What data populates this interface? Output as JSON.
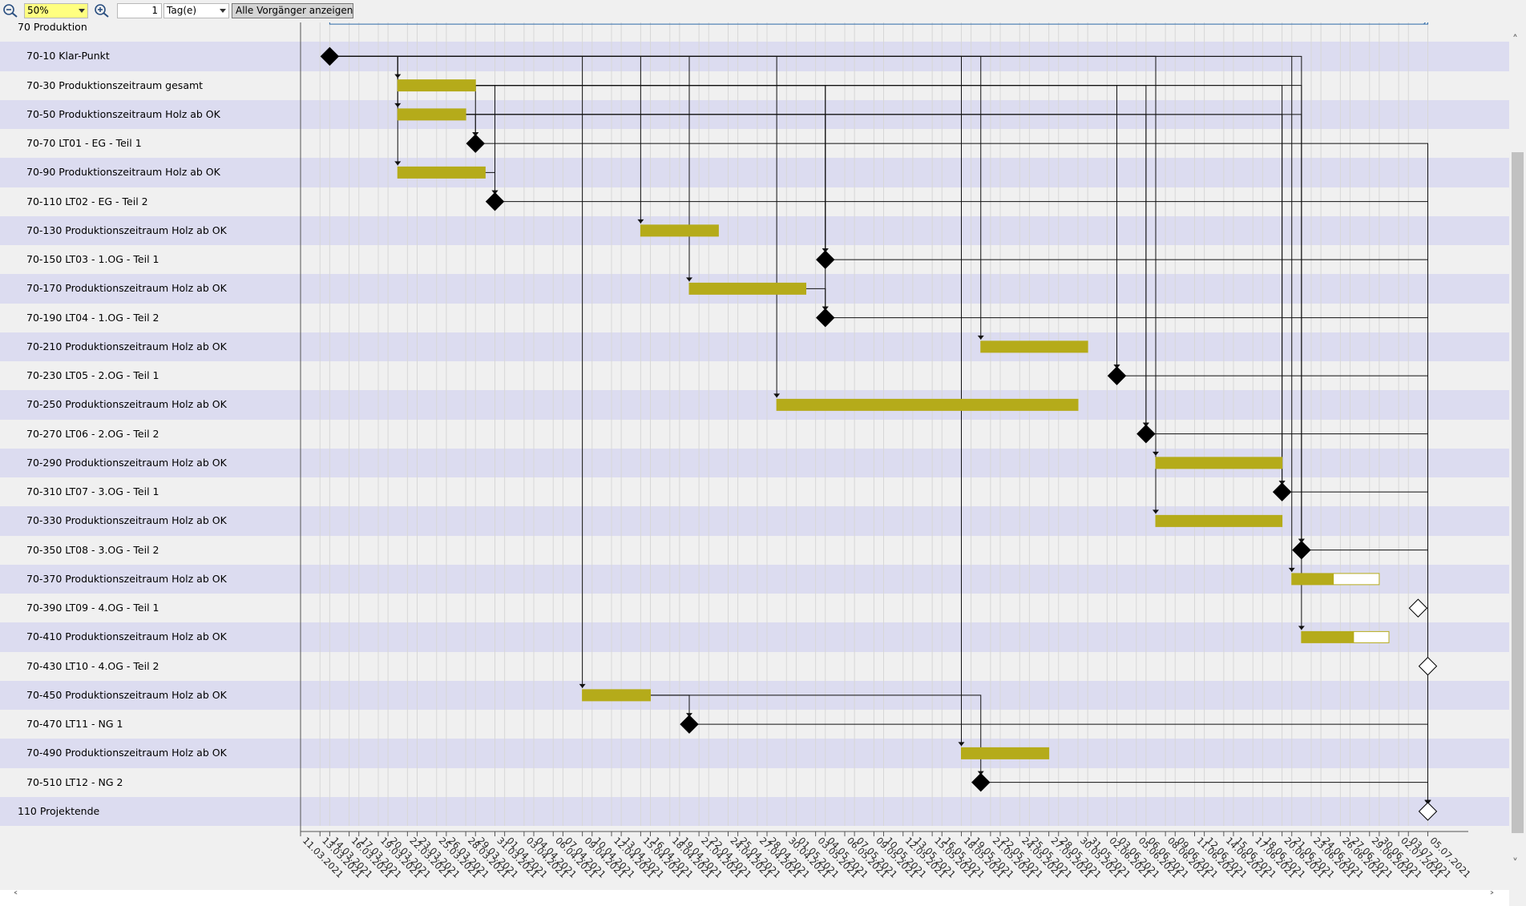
{
  "toolbar": {
    "zoom_value": "50%",
    "step_value": "1",
    "unit_value": "Tag(e)",
    "predecessor_button": "Alle Vorgänger anzeigen"
  },
  "rows": [
    {
      "label": "70 Produktion",
      "indent": 1
    },
    {
      "label": "70-10 Klar-Punkt",
      "indent": 2
    },
    {
      "label": "70-30 Produktionszeitraum gesamt",
      "indent": 2
    },
    {
      "label": "70-50 Produktionszeitraum Holz ab OK",
      "indent": 2
    },
    {
      "label": "70-70 LT01 - EG - Teil 1",
      "indent": 2
    },
    {
      "label": "70-90 Produktionszeitraum Holz ab OK",
      "indent": 2
    },
    {
      "label": "70-110 LT02 - EG - Teil 2",
      "indent": 2
    },
    {
      "label": "70-130 Produktionszeitraum Holz ab OK",
      "indent": 2
    },
    {
      "label": "70-150 LT03 - 1.OG - Teil 1",
      "indent": 2
    },
    {
      "label": "70-170 Produktionszeitraum Holz ab OK",
      "indent": 2
    },
    {
      "label": "70-190 LT04 - 1.OG - Teil 2",
      "indent": 2
    },
    {
      "label": "70-210 Produktionszeitraum Holz ab OK",
      "indent": 2
    },
    {
      "label": "70-230 LT05 - 2.OG - Teil 1",
      "indent": 2
    },
    {
      "label": "70-250 Produktionszeitraum Holz ab OK",
      "indent": 2
    },
    {
      "label": "70-270 LT06 - 2.OG - Teil 2",
      "indent": 2
    },
    {
      "label": "70-290 Produktionszeitraum Holz ab OK",
      "indent": 2
    },
    {
      "label": "70-310 LT07 - 3.OG - Teil 1",
      "indent": 2
    },
    {
      "label": "70-330 Produktionszeitraum Holz ab OK",
      "indent": 2
    },
    {
      "label": "70-350 LT08 - 3.OG - Teil 2",
      "indent": 2
    },
    {
      "label": "70-370 Produktionszeitraum Holz ab OK",
      "indent": 2
    },
    {
      "label": "70-390 LT09 - 4.OG - Teil 1",
      "indent": 2
    },
    {
      "label": "70-410 Produktionszeitraum Holz ab OK",
      "indent": 2
    },
    {
      "label": "70-430 LT10 - 4.OG - Teil 2",
      "indent": 2
    },
    {
      "label": "70-450 Produktionszeitraum Holz ab OK",
      "indent": 2
    },
    {
      "label": "70-470 LT11 - NG 1",
      "indent": 2
    },
    {
      "label": "70-490 Produktionszeitraum Holz ab OK",
      "indent": 2
    },
    {
      "label": "70-510 LT12 - NG 2",
      "indent": 2
    },
    {
      "label": "110 Projektende",
      "indent": 1
    }
  ],
  "dates": [
    "11.03.2021",
    "13.03.2021",
    "14.03.2021",
    "16.03.2021",
    "17.03.2021",
    "19.03.2021",
    "20.03.2021",
    "22.03.2021",
    "23.03.2021",
    "25.03.2021",
    "26.03.2021",
    "28.03.2021",
    "29.03.2021",
    "31.03.2021",
    "01.04.2021",
    "03.04.2021",
    "04.04.2021",
    "06.04.2021",
    "07.04.2021",
    "09.04.2021",
    "10.04.2021",
    "12.04.2021",
    "13.04.2021",
    "15.04.2021",
    "16.04.2021",
    "18.04.2021",
    "19.04.2021",
    "21.04.2021",
    "22.04.2021",
    "24.04.2021",
    "25.04.2021",
    "27.04.2021",
    "28.04.2021",
    "30.04.2021",
    "01.05.2021",
    "03.05.2021",
    "04.05.2021",
    "06.05.2021",
    "07.05.2021",
    "09.05.2021",
    "10.05.2021",
    "12.05.2021",
    "13.05.2021",
    "15.05.2021",
    "16.05.2021",
    "18.05.2021",
    "19.05.2021",
    "21.05.2021",
    "22.05.2021",
    "24.05.2021",
    "25.05.2021",
    "27.05.2021",
    "28.05.2021",
    "30.05.2021",
    "31.05.2021",
    "02.06.2021",
    "03.06.2021",
    "05.06.2021",
    "06.06.2021",
    "08.06.2021",
    "09.06.2021",
    "11.06.2021",
    "12.06.2021",
    "14.06.2021",
    "15.06.2021",
    "17.06.2021",
    "18.06.2021",
    "20.06.2021",
    "21.06.2021",
    "23.06.2021",
    "24.06.2021",
    "26.06.2021",
    "27.06.2021",
    "29.06.2021",
    "30.06.2021",
    "02.07.2021",
    "03.07.2021",
    "05.07.2021"
  ],
  "colors": {
    "bar": "#b5ab1a",
    "summary": "#2e6aa8",
    "milestone": "#000000",
    "row_alt": "#dcdcf0"
  },
  "icons": {
    "zoom_out": "zoom-out-icon",
    "zoom_in": "zoom-in-icon"
  },
  "tasks": [
    {
      "row": 0,
      "kind": "summary",
      "start": "14.03.2021",
      "end": "05.07.2021",
      "progress": 0.83
    },
    {
      "row": 1,
      "kind": "milestone",
      "date": "14.03.2021",
      "done": true
    },
    {
      "row": 2,
      "kind": "bar",
      "start": "21.03.2021",
      "end": "29.03.2021",
      "progress": 1
    },
    {
      "row": 3,
      "kind": "bar",
      "start": "21.03.2021",
      "end": "28.03.2021",
      "progress": 1
    },
    {
      "row": 4,
      "kind": "milestone",
      "date": "29.03.2021",
      "done": true
    },
    {
      "row": 5,
      "kind": "bar",
      "start": "21.03.2021",
      "end": "30.03.2021",
      "progress": 1
    },
    {
      "row": 6,
      "kind": "milestone",
      "date": "31.03.2021",
      "done": true
    },
    {
      "row": 7,
      "kind": "bar",
      "start": "15.04.2021",
      "end": "23.04.2021",
      "progress": 1
    },
    {
      "row": 8,
      "kind": "milestone",
      "date": "04.05.2021",
      "done": true
    },
    {
      "row": 9,
      "kind": "bar",
      "start": "20.04.2021",
      "end": "02.05.2021",
      "progress": 1
    },
    {
      "row": 10,
      "kind": "milestone",
      "date": "04.05.2021",
      "done": true
    },
    {
      "row": 11,
      "kind": "bar",
      "start": "20.05.2021",
      "end": "31.05.2021",
      "progress": 1
    },
    {
      "row": 12,
      "kind": "milestone",
      "date": "03.06.2021",
      "done": true
    },
    {
      "row": 13,
      "kind": "bar",
      "start": "29.04.2021",
      "end": "30.05.2021",
      "progress": 1
    },
    {
      "row": 14,
      "kind": "milestone",
      "date": "06.06.2021",
      "done": true
    },
    {
      "row": 15,
      "kind": "bar",
      "start": "07.06.2021",
      "end": "20.06.2021",
      "progress": 1
    },
    {
      "row": 16,
      "kind": "milestone",
      "date": "20.06.2021",
      "done": true
    },
    {
      "row": 17,
      "kind": "bar",
      "start": "07.06.2021",
      "end": "20.06.2021",
      "progress": 1
    },
    {
      "row": 18,
      "kind": "milestone",
      "date": "22.06.2021",
      "done": true
    },
    {
      "row": 19,
      "kind": "bar",
      "start": "21.06.2021",
      "end": "30.06.2021",
      "progress": 0.48
    },
    {
      "row": 20,
      "kind": "milestone",
      "date": "04.07.2021",
      "done": false
    },
    {
      "row": 21,
      "kind": "bar",
      "start": "22.06.2021",
      "end": "01.07.2021",
      "progress": 0.6
    },
    {
      "row": 22,
      "kind": "milestone",
      "date": "05.07.2021",
      "done": false
    },
    {
      "row": 23,
      "kind": "bar",
      "start": "09.04.2021",
      "end": "16.04.2021",
      "progress": 1
    },
    {
      "row": 24,
      "kind": "milestone",
      "date": "20.04.2021",
      "done": true
    },
    {
      "row": 25,
      "kind": "bar",
      "start": "18.05.2021",
      "end": "27.05.2021",
      "progress": 1
    },
    {
      "row": 26,
      "kind": "milestone",
      "date": "20.05.2021",
      "done": true
    },
    {
      "row": 27,
      "kind": "milestone",
      "date": "05.07.2021",
      "done": false
    }
  ],
  "links": [
    {
      "from": 1,
      "to": 2
    },
    {
      "from": 1,
      "to": 3
    },
    {
      "from": 1,
      "to": 5
    },
    {
      "from": 1,
      "to": 7
    },
    {
      "from": 1,
      "to": 9
    },
    {
      "from": 1,
      "to": 13
    },
    {
      "from": 1,
      "to": 23
    },
    {
      "from": 1,
      "to": 25
    },
    {
      "from": 1,
      "to": 15
    },
    {
      "from": 1,
      "to": 17
    },
    {
      "from": 1,
      "to": 19
    },
    {
      "from": 1,
      "to": 21
    },
    {
      "from": 1,
      "to": 11
    },
    {
      "from": 2,
      "to": 4
    },
    {
      "from": 3,
      "to": 4
    },
    {
      "from": 2,
      "to": 6
    },
    {
      "from": 5,
      "to": 6
    },
    {
      "from": 2,
      "to": 8
    },
    {
      "from": 3,
      "to": 8
    },
    {
      "from": 9,
      "to": 10
    },
    {
      "from": 2,
      "to": 10
    },
    {
      "from": 2,
      "to": 12
    },
    {
      "from": 3,
      "to": 12
    },
    {
      "from": 2,
      "to": 14
    },
    {
      "from": 3,
      "to": 14
    },
    {
      "from": 2,
      "to": 16
    },
    {
      "from": 3,
      "to": 16
    },
    {
      "from": 2,
      "to": 18
    },
    {
      "from": 3,
      "to": 18
    },
    {
      "from": 23,
      "to": 24
    },
    {
      "from": 23,
      "to": 26
    },
    {
      "from": 4,
      "to": 27
    },
    {
      "from": 6,
      "to": 27
    },
    {
      "from": 8,
      "to": 27
    },
    {
      "from": 10,
      "to": 27
    },
    {
      "from": 12,
      "to": 27
    },
    {
      "from": 14,
      "to": 27
    },
    {
      "from": 16,
      "to": 27
    },
    {
      "from": 18,
      "to": 27
    },
    {
      "from": 20,
      "to": 27
    },
    {
      "from": 22,
      "to": 27
    },
    {
      "from": 24,
      "to": 27
    },
    {
      "from": 26,
      "to": 27
    }
  ]
}
